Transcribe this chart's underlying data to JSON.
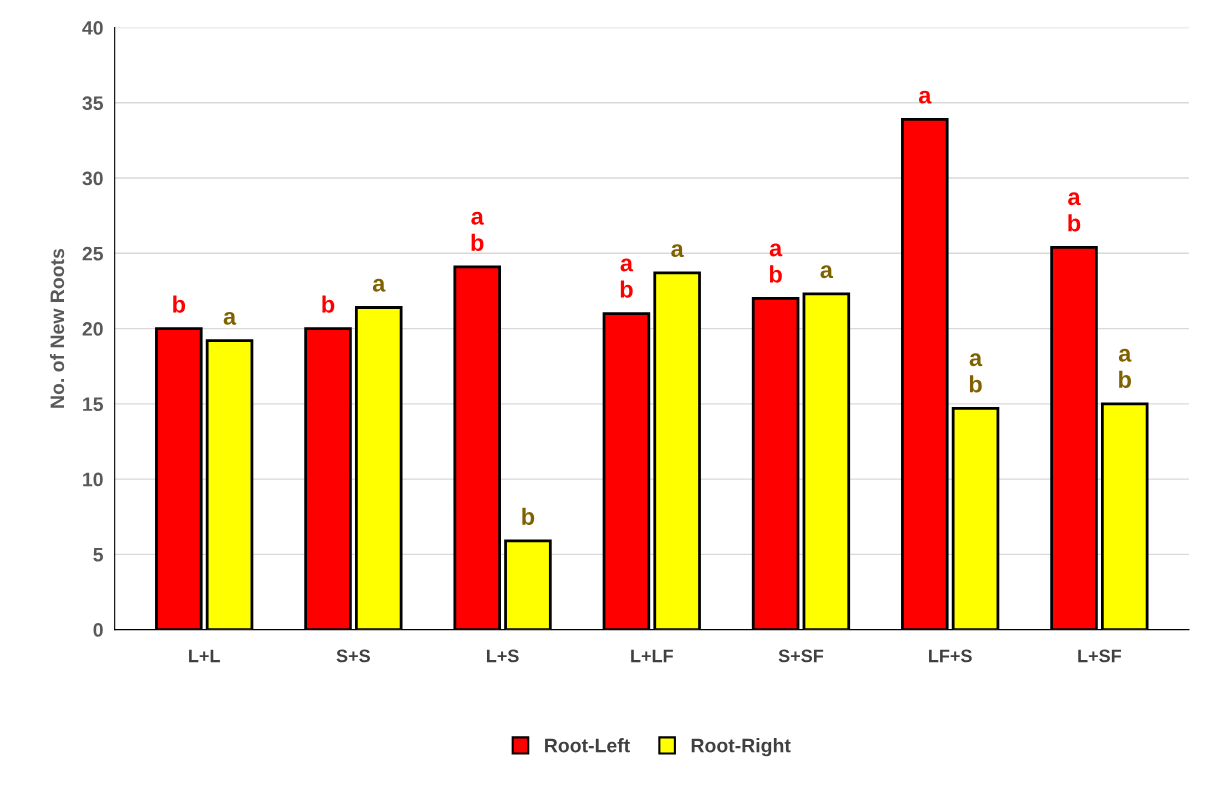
{
  "chart_data": {
    "type": "bar",
    "ylabel": "No. of New Roots",
    "categories": [
      "L+L",
      "S+S",
      "L+S",
      "L+LF",
      "S+SF",
      "LF+S",
      "L+SF"
    ],
    "series": [
      {
        "name": "Root-Left",
        "color": "#ff0000",
        "values": [
          20.0,
          20.0,
          24.1,
          21.0,
          22.0,
          33.9,
          25.4
        ],
        "value_labels": [
          "b",
          "b",
          "a\nb",
          "a\nb",
          "a\nb",
          "a",
          "a\nb"
        ]
      },
      {
        "name": "Root-Right",
        "color": "#ffff00",
        "values": [
          19.2,
          21.4,
          5.9,
          23.7,
          22.3,
          14.7,
          15.0
        ],
        "value_labels": [
          "a",
          "a",
          "b",
          "a",
          "a",
          "a\nb",
          "a\nb"
        ]
      }
    ],
    "ylim": [
      0,
      40
    ],
    "yticks": [
      0,
      5,
      10,
      15,
      20,
      25,
      30,
      35,
      40
    ],
    "grid": "y",
    "legend": "bottom"
  }
}
